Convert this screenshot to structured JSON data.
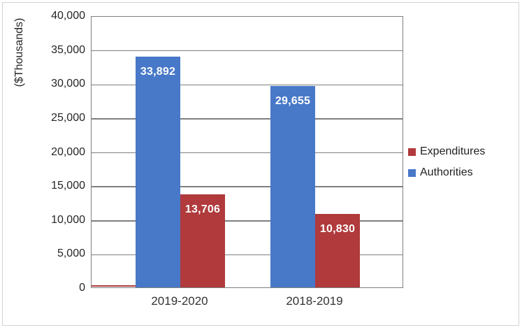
{
  "chart_data": {
    "type": "bar",
    "title": "",
    "xlabel": "",
    "ylabel": "($Thousands)",
    "categories": [
      "2019-2020",
      "2018-2019"
    ],
    "series": [
      {
        "name": "Authorities",
        "color": "#4878C8",
        "values": [
          33892,
          29655
        ],
        "value_labels": [
          "33,892",
          "29,655"
        ]
      },
      {
        "name": "Expenditures",
        "color": "#B03A3C",
        "values": [
          13706,
          10830
        ],
        "value_labels": [
          "13,706",
          "10,830"
        ]
      }
    ],
    "ylim": [
      0,
      40000
    ],
    "ytick_step": 5000,
    "ytick_labels": [
      "0",
      "5,000",
      "10,000",
      "15,000",
      "20,000",
      "25,000",
      "30,000",
      "35,000",
      "40,000"
    ],
    "grid": true,
    "gridline_color": "#7f7f7f",
    "legend_position": "right",
    "legend": {
      "items": [
        {
          "label": "Expenditures",
          "color": "#B03A3C"
        },
        {
          "label": "Authorities",
          "color": "#4878C8"
        }
      ]
    }
  }
}
